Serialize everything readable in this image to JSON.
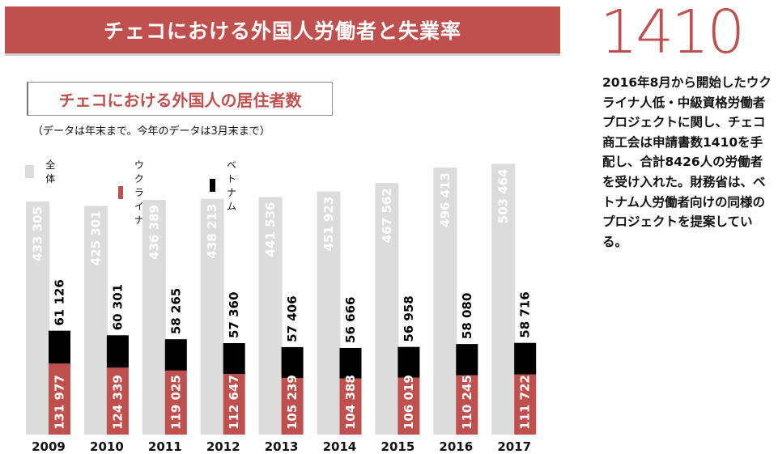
{
  "header": {
    "title": "チェコにおける外国人労働者と失業率",
    "big_number": "1410",
    "side_text": "2016年8月から開始したウクライナ人低・中級資格労働者プロジェクトに関し、チェコ商工会は申請書数1410を手配し、合計8426人の労働者を受け入れた。財務省は、ベトナム人労働者向けの同様のプロジェクトを提案している。"
  },
  "chart_title": "チェコにおける外国人の居住者数",
  "note": "（データは年末まで。今年のデータは3月末まで）",
  "colors": {
    "accent": "#c0504d",
    "total": "#dcdcdc",
    "ukraine": "#c0504d",
    "vietnam": "#000000"
  },
  "chart_data": {
    "type": "bar",
    "categories": [
      "2009",
      "2010",
      "2011",
      "2012",
      "2013",
      "2014",
      "2015",
      "2016",
      "2017"
    ],
    "series": [
      {
        "name": "全体",
        "values": [
          433305,
          425301,
          436389,
          438213,
          441536,
          451923,
          467562,
          496413,
          503464
        ],
        "labels": [
          "433 305",
          "425 301",
          "436 389",
          "438 213",
          "441 536",
          "451 923",
          "467 562",
          "496 413",
          "503 464"
        ]
      },
      {
        "name": "ウクライナ",
        "values": [
          131977,
          124339,
          119025,
          112647,
          105239,
          104388,
          106019,
          110245,
          111722
        ],
        "labels": [
          "131 977",
          "124 339",
          "119 025",
          "112 647",
          "105 239",
          "104 388",
          "106 019",
          "110 245",
          "111 722"
        ]
      },
      {
        "name": "ベトナム",
        "values": [
          61126,
          60301,
          58265,
          57360,
          57406,
          56666,
          56958,
          58080,
          58716
        ],
        "labels": [
          "61 126",
          "60 301",
          "58 265",
          "57 360",
          "57 406",
          "56 666",
          "56 958",
          "58 080",
          "58 716"
        ]
      }
    ],
    "stacking": "ベトナム stacked on ウクライナ; 全体 drawn as separate bar behind",
    "legend_position": "top-left",
    "grid": false
  }
}
